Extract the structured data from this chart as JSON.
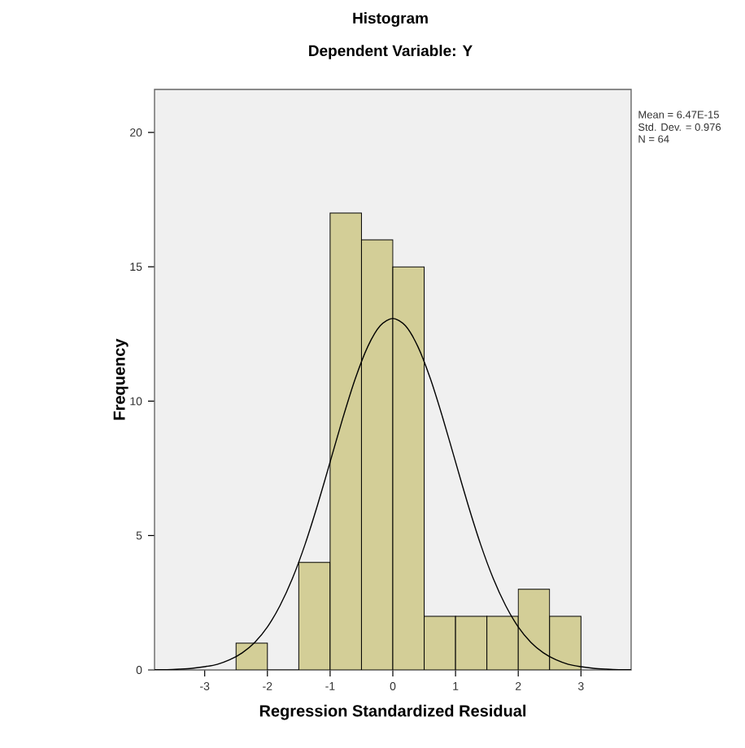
{
  "chart_data": {
    "type": "histogram",
    "title": "Histogram",
    "subtitle": "Dependent Variable: Y",
    "xlabel": "Regression Standardized Residual",
    "ylabel": "Frequency",
    "bins": [
      -2.5,
      -2,
      -1.5,
      -1,
      -0.5,
      0,
      0.5,
      1,
      1.5,
      2,
      2.5,
      3
    ],
    "values": [
      1,
      0,
      4,
      17,
      16,
      15,
      2,
      2,
      2,
      3,
      2
    ],
    "color": "#d3ce97",
    "series": [
      {
        "type": "line",
        "color": "#000000",
        "x": [
          -3.8,
          -3.6,
          -3.4,
          -3.2,
          -3.0,
          -2.8,
          -2.6,
          -2.4,
          -2.2,
          -2.0,
          -1.8,
          -1.6,
          -1.4,
          -1.2,
          -1.0,
          -0.8,
          -0.6,
          -0.4,
          -0.2,
          0,
          0.2,
          0.4,
          0.6,
          0.8,
          1.0,
          1.2,
          1.4,
          1.6,
          1.8,
          2.0,
          2.2,
          2.4,
          2.6,
          2.8,
          3.0,
          3.2,
          3.4,
          3.6,
          3.8
        ],
        "values": [
          0.01,
          0.01,
          0.03,
          0.06,
          0.12,
          0.21,
          0.38,
          0.64,
          1.03,
          1.6,
          2.39,
          3.41,
          4.67,
          6.14,
          7.74,
          9.35,
          10.83,
          12.03,
          12.81,
          13.08,
          12.81,
          12.03,
          10.83,
          9.35,
          7.74,
          6.14,
          4.67,
          3.41,
          2.39,
          1.6,
          1.03,
          0.64,
          0.38,
          0.21,
          0.12,
          0.06,
          0.03,
          0.01,
          0.01
        ]
      }
    ],
    "xlim": [
      -3.8,
      3.8
    ],
    "ylim": [
      0,
      21.6
    ],
    "xticks": [
      -3,
      -2,
      -1,
      0,
      1,
      2,
      3
    ],
    "yticks": [
      0,
      5,
      10,
      15,
      20
    ],
    "grid": false,
    "annotations": [
      "Mean = 6.47E-15",
      "Std. Dev. = 0.976",
      "N = 64"
    ]
  }
}
